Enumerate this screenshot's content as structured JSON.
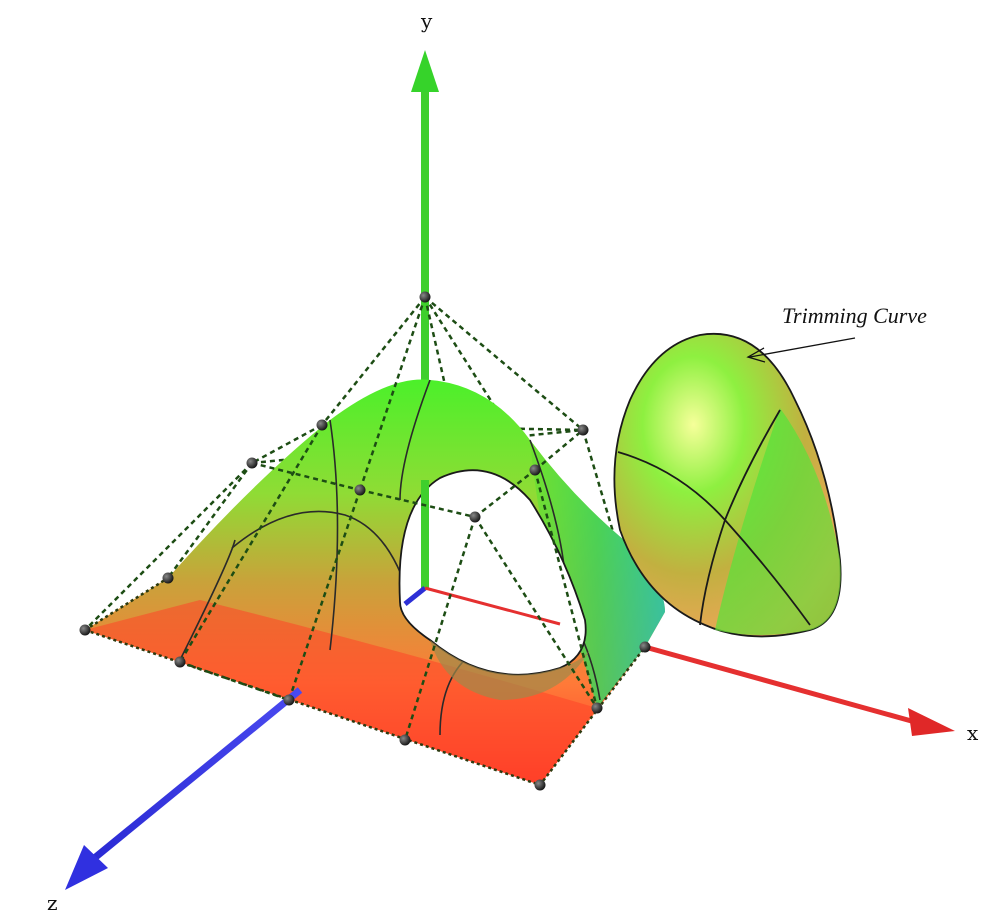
{
  "axes": {
    "x_label": "x",
    "y_label": "y",
    "z_label": "z"
  },
  "annotation": {
    "text": "Trimming Curve"
  },
  "colors": {
    "x_axis": "#e53030",
    "y_axis": "#3fcf2c",
    "z_axis": "#2d2fd6",
    "surface_high": "#52ee2e",
    "surface_low": "#ff5030",
    "control_net": "#1d4d14",
    "control_point": "#1a1a1a"
  }
}
